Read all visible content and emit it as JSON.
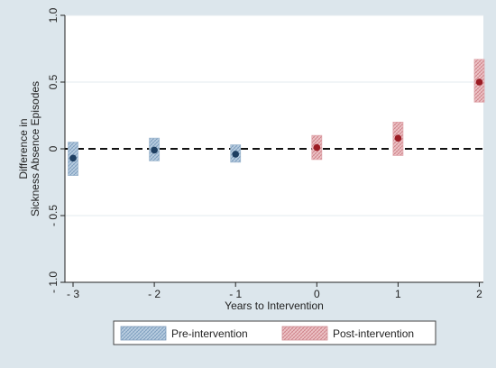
{
  "chart_data": {
    "type": "scatter",
    "title": "",
    "xlabel": "Years to Intervention",
    "ylabel_lines": [
      "Difference in",
      "Sickness Absence Episodes"
    ],
    "xlim": [
      -3.1,
      2.05
    ],
    "ylim": [
      -1.0,
      1.0
    ],
    "x_ticks": [
      -3,
      -2,
      -1,
      0,
      1,
      2
    ],
    "x_tick_labels": [
      "- 3",
      "- 2",
      "- 1",
      "0",
      "1",
      "2"
    ],
    "y_ticks": [
      -1,
      -0.5,
      0,
      0.5,
      1
    ],
    "y_tick_labels": [
      "- 1.0",
      "- 0.5",
      "0",
      "0.5",
      "1.0"
    ],
    "grid": "horizontal",
    "reference_line": {
      "y": 0,
      "style": "dashed"
    },
    "colors": {
      "pre_point": "#1e3f62",
      "pre_band": "#9fb8cf",
      "post_point": "#9b1c24",
      "post_band": "#dfa4aa",
      "plot_bg": "#ffffff",
      "page_bg": "#dce6ec"
    },
    "series": [
      {
        "name": "Pre-intervention",
        "points": [
          {
            "x": -3,
            "y": -0.07,
            "lo": -0.2,
            "hi": 0.05
          },
          {
            "x": -2,
            "y": -0.01,
            "lo": -0.09,
            "hi": 0.08
          },
          {
            "x": -1,
            "y": -0.04,
            "lo": -0.1,
            "hi": 0.03
          }
        ]
      },
      {
        "name": "Post-intervention",
        "points": [
          {
            "x": 0,
            "y": 0.01,
            "lo": -0.08,
            "hi": 0.1
          },
          {
            "x": 1,
            "y": 0.08,
            "lo": -0.05,
            "hi": 0.2
          },
          {
            "x": 2,
            "y": 0.5,
            "lo": 0.35,
            "hi": 0.67
          }
        ]
      }
    ],
    "legend": {
      "placement": "bottom-center",
      "entries": [
        "Pre-intervention",
        "Post-intervention"
      ]
    }
  }
}
